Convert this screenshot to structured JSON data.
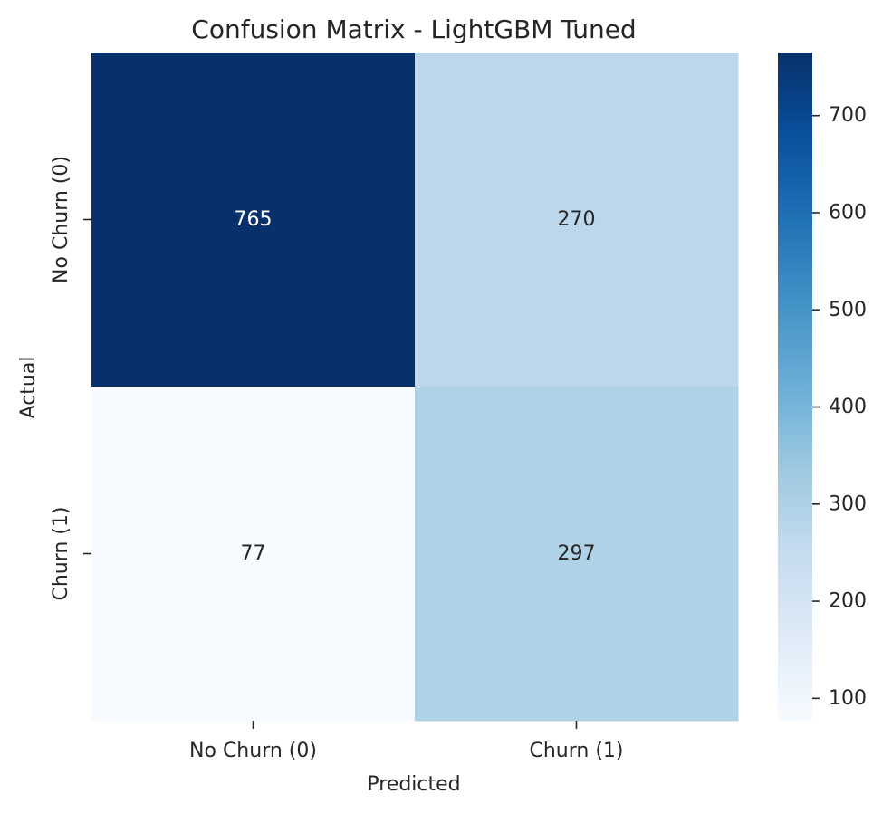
{
  "chart_data": {
    "type": "heatmap",
    "title": "Confusion Matrix - LightGBM Tuned",
    "xlabel": "Predicted",
    "ylabel": "Actual",
    "x_categories": [
      "No Churn (0)",
      "Churn (1)"
    ],
    "y_categories": [
      "No Churn (0)",
      "Churn (1)"
    ],
    "values": [
      [
        765,
        270
      ],
      [
        77,
        297
      ]
    ],
    "colormap": "Blues",
    "colorbar": {
      "min": 77,
      "max": 765,
      "ticks": [
        100,
        200,
        300,
        400,
        500,
        600,
        700
      ]
    },
    "annotation_colors": {
      "dark_cell": "#ffffff",
      "light_cell": "#262626"
    }
  }
}
